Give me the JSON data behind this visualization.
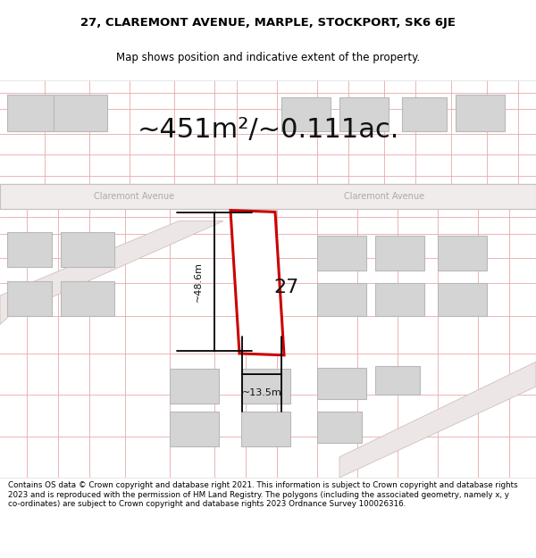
{
  "title_line1": "27, CLAREMONT AVENUE, MARPLE, STOCKPORT, SK6 6JE",
  "title_line2": "Map shows position and indicative extent of the property.",
  "area_label": "~451m²/~0.111ac.",
  "street_name": "Claremont Avenue",
  "plot_number": "27",
  "dim_height": "~48.6m",
  "dim_width": "~13.5m",
  "footer_text": "Contains OS data © Crown copyright and database right 2021. This information is subject to Crown copyright and database rights 2023 and is reproduced with the permission of HM Land Registry. The polygons (including the associated geometry, namely x, y co-ordinates) are subject to Crown copyright and database rights 2023 Ordnance Survey 100026316.",
  "map_bg": "#f7f3f3",
  "road_fill": "#f0ecec",
  "road_edge": "#c8c0c0",
  "plot_edge_color": "#cc0000",
  "plot_fill": "#ffffff",
  "building_fill": "#d4d4d4",
  "building_edge": "#b8b8b8",
  "faint_line_color": "#e8aaaa",
  "faint_lw": 0.6,
  "street_text_color": "#aaaaaa",
  "title_fontsize": 9.5,
  "subtitle_fontsize": 8.5,
  "area_fontsize": 22,
  "street_fontsize": 7,
  "plot_num_fontsize": 16,
  "dim_fontsize": 8,
  "footer_fontsize": 6.3
}
